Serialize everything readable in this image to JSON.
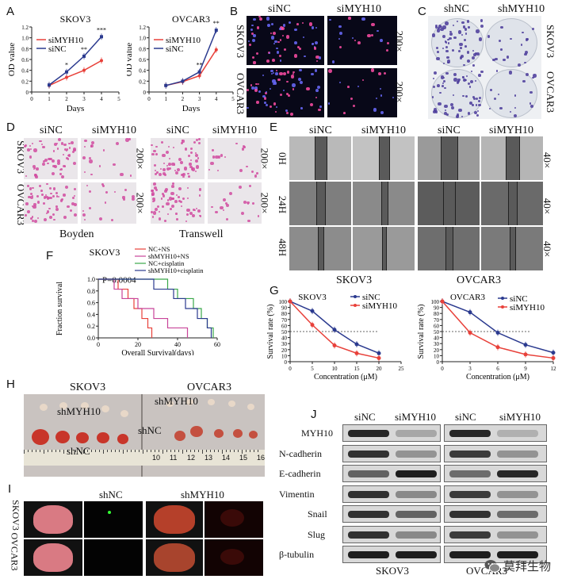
{
  "panels": {
    "A": "A",
    "B": "B",
    "C": "C",
    "D": "D",
    "E": "E",
    "F": "F",
    "G": "G",
    "H": "H",
    "I": "I",
    "J": "J"
  },
  "chart_data": [
    {
      "id": "A-left",
      "type": "line",
      "title": "SKOV3",
      "xlabel": "Days",
      "ylabel": "OD value",
      "x": [
        1,
        2,
        3,
        4
      ],
      "xlim": [
        0,
        5
      ],
      "ylim": [
        0,
        1.2
      ],
      "xticks": [
        "0",
        "1",
        "2",
        "3",
        "4",
        "5"
      ],
      "yticks": [
        "0",
        "0.2",
        "0.4",
        "0.6",
        "0.8",
        "1.0",
        "1.2"
      ],
      "legend_position": "top-left",
      "series": [
        {
          "name": "siMYH10",
          "color": "#e8413a",
          "values": [
            0.12,
            0.27,
            0.4,
            0.58
          ]
        },
        {
          "name": "siNC",
          "color": "#2b3a8f",
          "values": [
            0.13,
            0.37,
            0.66,
            1.02
          ]
        }
      ],
      "annotations": [
        "*",
        "**",
        "***"
      ]
    },
    {
      "id": "A-right",
      "type": "line",
      "title": "OVCAR3",
      "xlabel": "Days",
      "ylabel": "OD value",
      "x": [
        1,
        2,
        3,
        4
      ],
      "xlim": [
        0,
        5
      ],
      "ylim": [
        0,
        1.2
      ],
      "xticks": [
        "0",
        "1",
        "2",
        "3",
        "4",
        "5"
      ],
      "yticks": [
        "0",
        "0.2",
        "0.4",
        "0.6",
        "0.8",
        "1.0",
        "1.2"
      ],
      "legend_position": "top-left",
      "series": [
        {
          "name": "siMYH10",
          "color": "#e8413a",
          "values": [
            0.12,
            0.19,
            0.3,
            0.78
          ]
        },
        {
          "name": "siNC",
          "color": "#2b3a8f",
          "values": [
            0.12,
            0.2,
            0.37,
            1.14
          ]
        }
      ],
      "annotations": [
        "**",
        "**"
      ]
    },
    {
      "id": "F",
      "type": "line",
      "title": "SKOV3",
      "xlabel": "Overall Survival(days)",
      "ylabel": "Fraction survival",
      "xlim": [
        0,
        60
      ],
      "ylim": [
        0,
        1.0
      ],
      "xticks": [
        "0",
        "20",
        "40",
        "60"
      ],
      "yticks": [
        "0.0",
        "0.2",
        "0.4",
        "0.6",
        "0.8",
        "1.0"
      ],
      "annotation": "P=0.0004",
      "legend_position": "top-right",
      "series": [
        {
          "name": "NC+NS",
          "color": "#e8413a",
          "x": [
            0,
            10,
            15,
            18,
            22,
            25,
            27
          ],
          "values": [
            1.0,
            0.83,
            0.67,
            0.5,
            0.33,
            0.17,
            0.0
          ]
        },
        {
          "name": "shMYH10+NS",
          "color": "#c8449a",
          "x": [
            0,
            8,
            12,
            20,
            28,
            35,
            45
          ],
          "values": [
            1.0,
            0.83,
            0.67,
            0.5,
            0.33,
            0.17,
            0.0
          ]
        },
        {
          "name": "NC+cisplatin",
          "color": "#3aa84a",
          "x": [
            0,
            35,
            40,
            48,
            52,
            55,
            58
          ],
          "values": [
            1.0,
            0.83,
            0.67,
            0.5,
            0.33,
            0.17,
            0.0
          ]
        },
        {
          "name": "shMYH10+cisplatin",
          "color": "#2b3a8f",
          "x": [
            0,
            28,
            38,
            44,
            50,
            55,
            57
          ],
          "values": [
            1.0,
            0.83,
            0.67,
            0.5,
            0.33,
            0.17,
            0.0
          ]
        }
      ]
    },
    {
      "id": "G-left",
      "type": "line",
      "title": "SKOV3",
      "xlabel": "Concentration (μM)",
      "ylabel": "Survival rate (%)",
      "x": [
        0,
        5,
        10,
        15,
        20
      ],
      "xlim": [
        0,
        25
      ],
      "ylim": [
        0,
        100
      ],
      "xticks": [
        "0",
        "5",
        "10",
        "15",
        "20",
        "25"
      ],
      "yticks": [
        "0",
        "10",
        "20",
        "30",
        "40",
        "50",
        "60",
        "70",
        "80",
        "90",
        "100"
      ],
      "legend_position": "top-right",
      "series": [
        {
          "name": "siNC",
          "color": "#2b3a8f",
          "values": [
            100,
            84,
            53,
            29,
            14
          ]
        },
        {
          "name": "siMYH10",
          "color": "#e8413a",
          "values": [
            100,
            61,
            27,
            14,
            6
          ]
        }
      ]
    },
    {
      "id": "G-right",
      "type": "line",
      "title": "OVCAR3",
      "xlabel": "Concentration (μM)",
      "ylabel": "Survival rate (%)",
      "x": [
        0,
        3,
        6,
        9,
        12
      ],
      "xlim": [
        0,
        12
      ],
      "ylim": [
        0,
        100
      ],
      "xticks": [
        "0",
        "3",
        "6",
        "9",
        "12"
      ],
      "yticks": [
        "0",
        "10",
        "20",
        "30",
        "40",
        "50",
        "60",
        "70",
        "80",
        "90",
        "100"
      ],
      "legend_position": "top-right",
      "series": [
        {
          "name": "siNC",
          "color": "#2b3a8f",
          "values": [
            100,
            82,
            48,
            28,
            15
          ]
        },
        {
          "name": "siMYH10",
          "color": "#e8413a",
          "values": [
            100,
            48,
            24,
            12,
            6
          ]
        }
      ]
    }
  ],
  "B": {
    "cols": [
      "siNC",
      "siMYH10"
    ],
    "rows": [
      "SKOV3",
      "OVCAR3"
    ],
    "mag": "200×"
  },
  "C": {
    "cols": [
      "shNC",
      "shMYH10"
    ],
    "rows": [
      "SKOV3",
      "OVCAR3"
    ]
  },
  "D": {
    "cols": [
      "siNC",
      "siMYH10",
      "siNC",
      "siMYH10"
    ],
    "rows": [
      "SKOV3",
      "OVCAR3"
    ],
    "mag": "200×",
    "captions": [
      "Boyden",
      "Transwell"
    ]
  },
  "E": {
    "cols": [
      "siNC",
      "siMYH10",
      "siNC",
      "siMYH10"
    ],
    "rows": [
      "0H",
      "24H",
      "48H"
    ],
    "mag": "40×",
    "captions": [
      "SKOV3",
      "OVCAR3"
    ]
  },
  "H": {
    "lines": [
      "SKOV3",
      "OVCAR3"
    ],
    "groups": [
      "shMYH10",
      "shNC"
    ],
    "ruler": [
      "10",
      "11",
      "12",
      "13",
      "14",
      "15",
      "16"
    ]
  },
  "I": {
    "cols": [
      "shNC",
      "shMYH10"
    ],
    "rows": [
      "SKOV3",
      "OVCAR3"
    ]
  },
  "J": {
    "cols": [
      "siNC",
      "siMYH10",
      "siNC",
      "siMYH10"
    ],
    "rows": [
      "MYH10",
      "N-cadherin",
      "E-cadherin",
      "Vimentin",
      "Snail",
      "Slug",
      "β-tubulin"
    ],
    "captions": [
      "SKOV3",
      "OVCAR3"
    ]
  },
  "watermark": {
    "text": "莫拜生物",
    "icon": "wechat-icon"
  }
}
